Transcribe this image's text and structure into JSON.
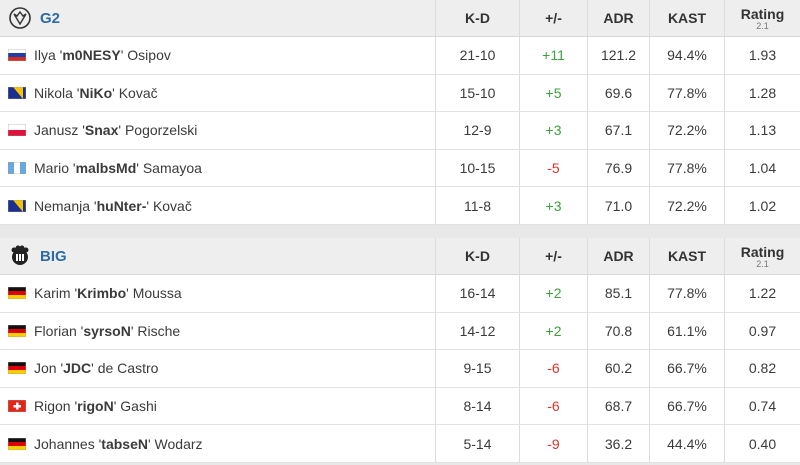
{
  "columns": [
    "K-D",
    "+/-",
    "ADR",
    "KAST",
    "Rating"
  ],
  "rating_version": "2.1",
  "teams": [
    {
      "name": "G2",
      "players": [
        {
          "first": "Ilya '",
          "nick": "m0NESY",
          "last": "' Osipov",
          "kd": "21-10",
          "diff": "+11",
          "adr": "121.2",
          "kast": "94.4%",
          "rating": "1.93"
        },
        {
          "first": "Nikola '",
          "nick": "NiKo",
          "last": "' Kovač",
          "kd": "15-10",
          "diff": "+5",
          "adr": "69.6",
          "kast": "77.8%",
          "rating": "1.28"
        },
        {
          "first": "Janusz '",
          "nick": "Snax",
          "last": "' Pogorzelski",
          "kd": "12-9",
          "diff": "+3",
          "adr": "67.1",
          "kast": "72.2%",
          "rating": "1.13"
        },
        {
          "first": "Mario '",
          "nick": "malbsMd",
          "last": "' Samayoa",
          "kd": "10-15",
          "diff": "-5",
          "adr": "76.9",
          "kast": "77.8%",
          "rating": "1.04"
        },
        {
          "first": "Nemanja '",
          "nick": "huNter-",
          "last": "' Kovač",
          "kd": "11-8",
          "diff": "+3",
          "adr": "71.0",
          "kast": "72.2%",
          "rating": "1.02"
        }
      ]
    },
    {
      "name": "BIG",
      "players": [
        {
          "first": "Karim '",
          "nick": "Krimbo",
          "last": "' Moussa",
          "kd": "16-14",
          "diff": "+2",
          "adr": "85.1",
          "kast": "77.8%",
          "rating": "1.22"
        },
        {
          "first": "Florian '",
          "nick": "syrsoN",
          "last": "' Rische",
          "kd": "14-12",
          "diff": "+2",
          "adr": "70.8",
          "kast": "61.1%",
          "rating": "0.97"
        },
        {
          "first": "Jon '",
          "nick": "JDC",
          "last": "' de Castro",
          "kd": "9-15",
          "diff": "-6",
          "adr": "60.2",
          "kast": "66.7%",
          "rating": "0.82"
        },
        {
          "first": "Rigon '",
          "nick": "rigoN",
          "last": "' Gashi",
          "kd": "8-14",
          "diff": "-6",
          "adr": "68.7",
          "kast": "66.7%",
          "rating": "0.74"
        },
        {
          "first": "Johannes '",
          "nick": "tabseN",
          "last": "' Wodarz",
          "kd": "5-14",
          "diff": "-9",
          "adr": "36.2",
          "kast": "44.4%",
          "rating": "0.40"
        }
      ]
    }
  ]
}
